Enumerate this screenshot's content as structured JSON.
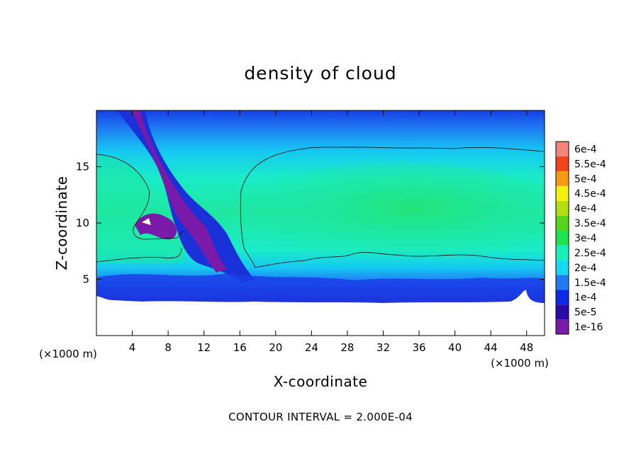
{
  "chart_data": {
    "type": "heatmap",
    "title": "density of cloud",
    "xlabel": "X-coordinate",
    "ylabel": "Z-coordinate",
    "x_unit": "(×1000 m)",
    "z_unit": "(×1000 m)",
    "xlim": [
      0,
      50
    ],
    "ylim": [
      0,
      20
    ],
    "x_ticks": [
      "4",
      "8",
      "12",
      "16",
      "20",
      "24",
      "28",
      "32",
      "36",
      "40",
      "44",
      "48"
    ],
    "x_tick_values": [
      4,
      8,
      12,
      16,
      20,
      24,
      28,
      32,
      36,
      40,
      44,
      48
    ],
    "y_ticks": [
      "5",
      "10",
      "15"
    ],
    "y_tick_values": [
      5,
      10,
      15
    ],
    "colorbar": {
      "labels": [
        "1e-16",
        "5e-5",
        "1e-4",
        "1.5e-4",
        "2e-4",
        "2.5e-4",
        "3e-4",
        "3.5e-4",
        "4e-4",
        "4.5e-4",
        "5e-4",
        "5.5e-4",
        "6e-4"
      ],
      "colors": [
        "#7a1aa8",
        "#2a0aa8",
        "#0a2ae8",
        "#1f7cf2",
        "#16d8f2",
        "#19f0b8",
        "#1fe24e",
        "#56d61a",
        "#b4e012",
        "#f2f20e",
        "#f59a12",
        "#f2441a",
        "#f4857c"
      ]
    },
    "contour_interval": "CONTOUR INTERVAL = 2.000E-04",
    "contour_level": 0.0002
  }
}
